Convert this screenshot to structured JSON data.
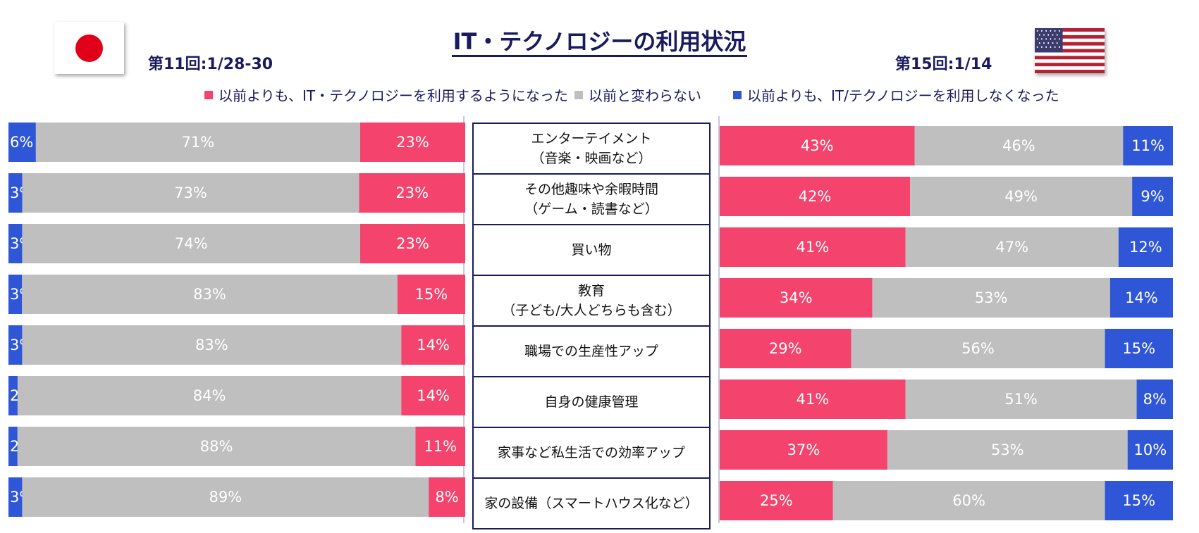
{
  "title": "IT・テクノロジーの利用状況",
  "japan": {
    "flag_icon": "japan-flag-icon",
    "survey_label": "第11回:1/28-30"
  },
  "usa": {
    "flag_icon": "us-flag-icon",
    "survey_label": "第15回:1/14"
  },
  "legend": [
    {
      "label": "以前よりも、IT・テクノロジーを利用するようになった",
      "color": "#f4436d"
    },
    {
      "label": "以前と変わらない",
      "color": "#bfbfbf"
    },
    {
      "label": "以前よりも、IT/テクノロジーを利用しなくなった",
      "color": "#2f56d6"
    }
  ],
  "categories": [
    {
      "line1": "エンターテイメント",
      "line2": "（音楽・映画など）"
    },
    {
      "line1": "その他趣味や余暇時間",
      "line2": "（ゲーム・読書など）"
    },
    {
      "line1": "買い物",
      "line2": ""
    },
    {
      "line1": "教育",
      "line2": "（子ども/大人どちらも含む）"
    },
    {
      "line1": "職場での生産性アップ",
      "line2": ""
    },
    {
      "line1": "自身の健康管理",
      "line2": ""
    },
    {
      "line1": "家事など私生活での効率アップ",
      "line2": ""
    },
    {
      "line1": "家の設備（スマートハウス化など）",
      "line2": ""
    }
  ],
  "chart_data": [
    {
      "type": "bar",
      "stacked": true,
      "orientation": "horizontal",
      "title": "第11回:1/28-30",
      "categories": [
        "エンターテイメント（音楽・映画など）",
        "その他趣味や余暇時間（ゲーム・読書など）",
        "買い物",
        "教育（子ども/大人どちらも含む）",
        "職場での生産性アップ",
        "自身の健康管理",
        "家事など私生活での効率アップ",
        "家の設備（スマートハウス化など）"
      ],
      "series": [
        {
          "name": "以前よりも、IT/テクノロジーを利用しなくなった",
          "color": "#2f56d6",
          "values": [
            6,
            3,
            3,
            3,
            3,
            2,
            2,
            3
          ]
        },
        {
          "name": "以前と変わらない",
          "color": "#bfbfbf",
          "values": [
            71,
            73,
            74,
            83,
            83,
            84,
            88,
            89
          ]
        },
        {
          "name": "以前よりも、IT・テクノロジーを利用するようになった",
          "color": "#f4436d",
          "values": [
            23,
            23,
            23,
            15,
            14,
            14,
            11,
            8
          ]
        }
      ],
      "value_format": "%"
    },
    {
      "type": "bar",
      "stacked": true,
      "orientation": "horizontal",
      "title": "第15回:1/14",
      "categories": [
        "エンターテイメント（音楽・映画など）",
        "その他趣味や余暇時間（ゲーム・読書など）",
        "買い物",
        "教育（子ども/大人どちらも含む）",
        "職場での生産性アップ",
        "自身の健康管理",
        "家事など私生活での効率アップ",
        "家の設備（スマートハウス化など）"
      ],
      "series": [
        {
          "name": "以前よりも、IT・テクノロジーを利用するようになった",
          "color": "#f4436d",
          "values": [
            43,
            42,
            41,
            34,
            29,
            41,
            37,
            25
          ]
        },
        {
          "name": "以前と変わらない",
          "color": "#bfbfbf",
          "values": [
            46,
            49,
            47,
            53,
            56,
            51,
            53,
            60
          ]
        },
        {
          "name": "以前よりも、IT/テクノロジーを利用しなくなった",
          "color": "#2f56d6",
          "values": [
            11,
            9,
            12,
            14,
            15,
            8,
            10,
            15
          ]
        }
      ],
      "value_format": "%"
    }
  ]
}
